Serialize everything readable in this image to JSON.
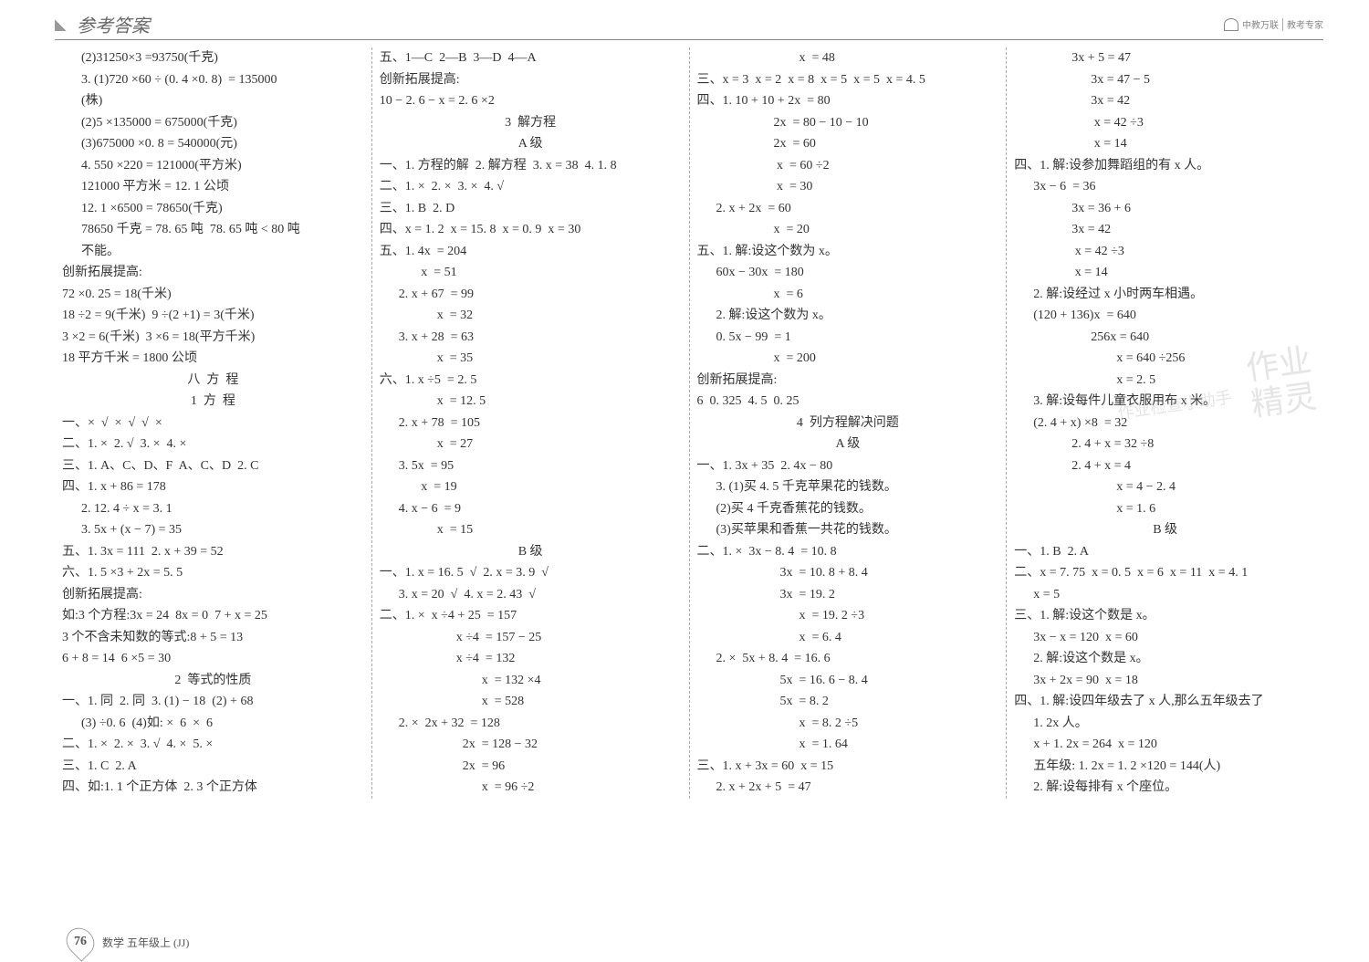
{
  "header": {
    "title": "参考答案",
    "brand_small": "中教万联",
    "brand_sub": "教考专家"
  },
  "footer": {
    "page": "76",
    "subject": "数学 五年级上 (JJ)"
  },
  "watermark": {
    "big1": "作业",
    "big2": "精灵",
    "small": "作业检查小助手"
  },
  "col1": [
    {
      "c": "indent1",
      "t": "(2)31250×3 =93750(千克)"
    },
    {
      "c": "indent1",
      "t": "3. (1)720 ×60 ÷ (0. 4 ×0. 8)  = 135000"
    },
    {
      "c": "indent1",
      "t": "(株)"
    },
    {
      "c": "indent1",
      "t": "(2)5 ×135000 = 675000(千克)"
    },
    {
      "c": "indent1",
      "t": "(3)675000 ×0. 8 = 540000(元)"
    },
    {
      "c": "indent1",
      "t": "4. 550 ×220 = 121000(平方米)"
    },
    {
      "c": "indent1",
      "t": "121000 平方米 = 12. 1 公顷"
    },
    {
      "c": "indent1",
      "t": "12. 1 ×6500 = 78650(千克)"
    },
    {
      "c": "indent1",
      "t": "78650 千克 = 78. 65 吨  78. 65 吨 < 80 吨"
    },
    {
      "c": "indent1",
      "t": "不能。"
    },
    {
      "c": "",
      "t": "创新拓展提高:"
    },
    {
      "c": "",
      "t": "72 ×0. 25 = 18(千米)"
    },
    {
      "c": "",
      "t": "18 ÷2 = 9(千米)  9 ÷(2 +1) = 3(千米)"
    },
    {
      "c": "",
      "t": "3 ×2 = 6(千米)  3 ×6 = 18(平方千米)"
    },
    {
      "c": "",
      "t": "18 平方千米 = 1800 公顷"
    },
    {
      "c": "center",
      "t": "八  方  程"
    },
    {
      "c": "center",
      "t": "1  方  程"
    },
    {
      "c": "",
      "t": "一、×  √  ×  √  √  ×"
    },
    {
      "c": "",
      "t": "二、1. ×  2. √  3. ×  4. ×"
    },
    {
      "c": "",
      "t": "三、1. A、C、D、F  A、C、D  2. C"
    },
    {
      "c": "",
      "t": "四、1. x + 86 = 178"
    },
    {
      "c": "indent1",
      "t": "2. 12. 4 ÷ x = 3. 1"
    },
    {
      "c": "indent1",
      "t": "3. 5x + (x − 7) = 35"
    },
    {
      "c": "",
      "t": "五、1. 3x = 111  2. x + 39 = 52"
    },
    {
      "c": "",
      "t": "六、1. 5 ×3 + 2x = 5. 5"
    },
    {
      "c": "",
      "t": "创新拓展提高:"
    },
    {
      "c": "",
      "t": "如:3 个方程:3x = 24  8x = 0  7 + x = 25"
    },
    {
      "c": "",
      "t": "3 个不含未知数的等式:8 + 5 = 13"
    },
    {
      "c": "",
      "t": "6 + 8 = 14  6 ×5 = 30"
    },
    {
      "c": "center",
      "t": "2  等式的性质"
    },
    {
      "c": "",
      "t": "一、1. 同  2. 同  3. (1) − 18  (2) + 68"
    },
    {
      "c": "indent1",
      "t": "(3) ÷0. 6  (4)如: ×  6  ×  6"
    },
    {
      "c": "",
      "t": "二、1. ×  2. ×  3. √  4. ×  5. ×"
    },
    {
      "c": "",
      "t": "三、1. C  2. A"
    },
    {
      "c": "",
      "t": "四、如:1. 1 个正方体  2. 3 个正方体"
    }
  ],
  "col2": [
    {
      "c": "",
      "t": "五、1—C  2—B  3—D  4—A"
    },
    {
      "c": "",
      "t": "创新拓展提高:"
    },
    {
      "c": "",
      "t": "10 − 2. 6 − x = 2. 6 ×2"
    },
    {
      "c": "center",
      "t": "3  解方程"
    },
    {
      "c": "center",
      "t": "A 级"
    },
    {
      "c": "",
      "t": "一、1. 方程的解  2. 解方程  3. x = 38  4. 1. 8"
    },
    {
      "c": "",
      "t": "二、1. ×  2. ×  3. ×  4. √"
    },
    {
      "c": "",
      "t": "三、1. B  2. D"
    },
    {
      "c": "",
      "t": "四、x = 1. 2  x = 15. 8  x = 0. 9  x = 30"
    },
    {
      "c": "",
      "t": "五、1. 4x  = 204"
    },
    {
      "c": "indent2",
      "t": " x  = 51"
    },
    {
      "c": "indent1",
      "t": "2. x + 67  = 99"
    },
    {
      "c": "indent3",
      "t": "x  = 32"
    },
    {
      "c": "indent1",
      "t": "3. x + 28  = 63"
    },
    {
      "c": "indent3",
      "t": "x  = 35"
    },
    {
      "c": "",
      "t": "六、1. x ÷5  = 2. 5"
    },
    {
      "c": "indent3",
      "t": "x  = 12. 5"
    },
    {
      "c": "indent1",
      "t": "2. x + 78  = 105"
    },
    {
      "c": "indent3",
      "t": "x  = 27"
    },
    {
      "c": "indent1",
      "t": "3. 5x  = 95"
    },
    {
      "c": "indent2",
      "t": " x  = 19"
    },
    {
      "c": "indent1",
      "t": "4. x − 6  = 9"
    },
    {
      "c": "indent3",
      "t": "x  = 15"
    },
    {
      "c": "center",
      "t": "B 级"
    },
    {
      "c": "",
      "t": "一、1. x = 16. 5  √  2. x = 3. 9  √"
    },
    {
      "c": "indent1",
      "t": "3. x = 20  √  4. x = 2. 43  √"
    },
    {
      "c": "",
      "t": "二、1. ×  x ÷4 + 25  = 157"
    },
    {
      "c": "indent4",
      "t": "x ÷4  = 157 − 25"
    },
    {
      "c": "indent4",
      "t": "x ÷4  = 132"
    },
    {
      "c": "indent5",
      "t": "x  = 132 ×4"
    },
    {
      "c": "indent5",
      "t": "x  = 528"
    },
    {
      "c": "indent1",
      "t": "2. ×  2x + 32  = 128"
    },
    {
      "c": "indent4",
      "t": "  2x  = 128 − 32"
    },
    {
      "c": "indent4",
      "t": "  2x  = 96"
    },
    {
      "c": "indent5",
      "t": "x  = 96 ÷2"
    }
  ],
  "col3": [
    {
      "c": "indent5",
      "t": "x  = 48"
    },
    {
      "c": "",
      "t": "三、x = 3  x = 2  x = 8  x = 5  x = 5  x = 4. 5"
    },
    {
      "c": "",
      "t": "四、1. 10 + 10 + 2x  = 80"
    },
    {
      "c": "indent4",
      "t": "2x  = 80 − 10 − 10"
    },
    {
      "c": "indent4",
      "t": "2x  = 60"
    },
    {
      "c": "indent4",
      "t": " x  = 60 ÷2"
    },
    {
      "c": "indent4",
      "t": " x  = 30"
    },
    {
      "c": "indent1",
      "t": "2. x + 2x  = 60"
    },
    {
      "c": "indent4",
      "t": "x  = 20"
    },
    {
      "c": "",
      "t": "五、1. 解:设这个数为 x。"
    },
    {
      "c": "indent1",
      "t": "60x − 30x  = 180"
    },
    {
      "c": "indent4",
      "t": "x  = 6"
    },
    {
      "c": "indent1",
      "t": "2. 解:设这个数为 x。"
    },
    {
      "c": "indent1",
      "t": "0. 5x − 99  = 1"
    },
    {
      "c": "indent4",
      "t": "x  = 200"
    },
    {
      "c": "",
      "t": "创新拓展提高:"
    },
    {
      "c": "",
      "t": "6  0. 325  4. 5  0. 25"
    },
    {
      "c": "center",
      "t": "4  列方程解决问题"
    },
    {
      "c": "center",
      "t": "A 级"
    },
    {
      "c": "",
      "t": "一、1. 3x + 35  2. 4x − 80"
    },
    {
      "c": "indent1",
      "t": "3. (1)买 4. 5 千克苹果花的钱数。"
    },
    {
      "c": "indent1",
      "t": "(2)买 4 千克香蕉花的钱数。"
    },
    {
      "c": "indent1",
      "t": "(3)买苹果和香蕉一共花的钱数。"
    },
    {
      "c": "",
      "t": "二、1. ×  3x − 8. 4  = 10. 8"
    },
    {
      "c": "indent4",
      "t": "  3x  = 10. 8 + 8. 4"
    },
    {
      "c": "indent4",
      "t": "  3x  = 19. 2"
    },
    {
      "c": "indent5",
      "t": "x  = 19. 2 ÷3"
    },
    {
      "c": "indent5",
      "t": "x  = 6. 4"
    },
    {
      "c": "indent1",
      "t": "2. ×  5x + 8. 4  = 16. 6"
    },
    {
      "c": "indent4",
      "t": "  5x  = 16. 6 − 8. 4"
    },
    {
      "c": "indent4",
      "t": "  5x  = 8. 2"
    },
    {
      "c": "indent5",
      "t": "x  = 8. 2 ÷5"
    },
    {
      "c": "indent5",
      "t": "x  = 1. 64"
    },
    {
      "c": "",
      "t": "三、1. x + 3x = 60  x = 15"
    },
    {
      "c": "indent1",
      "t": "2. x + 2x + 5  = 47"
    }
  ],
  "col4": [
    {
      "c": "indent3",
      "t": "3x + 5 = 47"
    },
    {
      "c": "indent4",
      "t": "3x = 47 − 5"
    },
    {
      "c": "indent4",
      "t": "3x = 42"
    },
    {
      "c": "indent4",
      "t": " x = 42 ÷3"
    },
    {
      "c": "indent4",
      "t": " x = 14"
    },
    {
      "c": "",
      "t": "四、1. 解:设参加舞蹈组的有 x 人。"
    },
    {
      "c": "indent1",
      "t": "3x − 6  = 36"
    },
    {
      "c": "indent3",
      "t": "3x = 36 + 6"
    },
    {
      "c": "indent3",
      "t": "3x = 42"
    },
    {
      "c": "indent3",
      "t": " x = 42 ÷3"
    },
    {
      "c": "indent3",
      "t": " x = 14"
    },
    {
      "c": "indent1",
      "t": "2. 解:设经过 x 小时两车相遇。"
    },
    {
      "c": "indent1",
      "t": "(120 + 136)x  = 640"
    },
    {
      "c": "indent4",
      "t": "256x = 640"
    },
    {
      "c": "indent5",
      "t": "x = 640 ÷256"
    },
    {
      "c": "indent5",
      "t": "x = 2. 5"
    },
    {
      "c": "indent1",
      "t": "3. 解:设每件儿童衣服用布 x 米。"
    },
    {
      "c": "indent1",
      "t": "(2. 4 + x) ×8  = 32"
    },
    {
      "c": "indent3",
      "t": "2. 4 + x = 32 ÷8"
    },
    {
      "c": "indent3",
      "t": "2. 4 + x = 4"
    },
    {
      "c": "indent5",
      "t": "x = 4 − 2. 4"
    },
    {
      "c": "indent5",
      "t": "x = 1. 6"
    },
    {
      "c": "center",
      "t": "B 级"
    },
    {
      "c": "",
      "t": "一、1. B  2. A"
    },
    {
      "c": "",
      "t": "二、x = 7. 75  x = 0. 5  x = 6  x = 11  x = 4. 1"
    },
    {
      "c": "indent1",
      "t": "x = 5"
    },
    {
      "c": "",
      "t": "三、1. 解:设这个数是 x。"
    },
    {
      "c": "indent1",
      "t": "3x − x = 120  x = 60"
    },
    {
      "c": "indent1",
      "t": "2. 解:设这个数是 x。"
    },
    {
      "c": "indent1",
      "t": "3x + 2x = 90  x = 18"
    },
    {
      "c": "",
      "t": "四、1. 解:设四年级去了 x 人,那么五年级去了"
    },
    {
      "c": "indent1",
      "t": "1. 2x 人。"
    },
    {
      "c": "indent1",
      "t": "x + 1. 2x = 264  x = 120"
    },
    {
      "c": "indent1",
      "t": "五年级: 1. 2x = 1. 2 ×120 = 144(人)"
    },
    {
      "c": "indent1",
      "t": "2. 解:设每排有 x 个座位。"
    }
  ]
}
